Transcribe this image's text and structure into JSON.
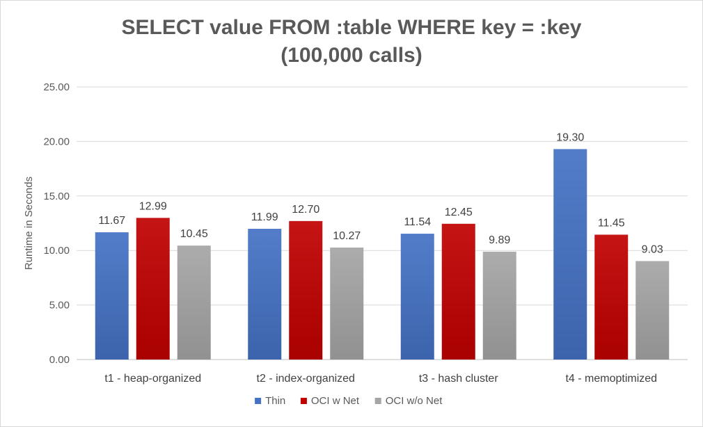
{
  "chart_data": {
    "type": "bar",
    "title": "SELECT value FROM :table WHERE key = :key",
    "subtitle": "(100,000 calls)",
    "ylabel": "Runtime in Seconds",
    "xlabel": "",
    "ylim": [
      0,
      25
    ],
    "yticks": [
      "0.00",
      "5.00",
      "10.00",
      "15.00",
      "20.00",
      "25.00"
    ],
    "grid": true,
    "legend_position": "bottom",
    "categories": [
      "t1 - heap-organized",
      "t2 - index-organized",
      "t3 - hash cluster",
      "t4 - memoptimized"
    ],
    "series": [
      {
        "name": "Thin",
        "color": "#4472c4",
        "values": [
          11.67,
          11.99,
          11.54,
          19.3
        ],
        "labels": [
          "11.67",
          "11.99",
          "11.54",
          "19.30"
        ]
      },
      {
        "name": "OCI w Net",
        "color": "#c00000",
        "values": [
          12.99,
          12.7,
          12.45,
          11.45
        ],
        "labels": [
          "12.99",
          "12.70",
          "12.45",
          "11.45"
        ]
      },
      {
        "name": "OCI w/o Net",
        "color": "#a5a5a5",
        "values": [
          10.45,
          10.27,
          9.89,
          9.03
        ],
        "labels": [
          "10.45",
          "10.27",
          "9.89",
          "9.03"
        ]
      }
    ]
  }
}
